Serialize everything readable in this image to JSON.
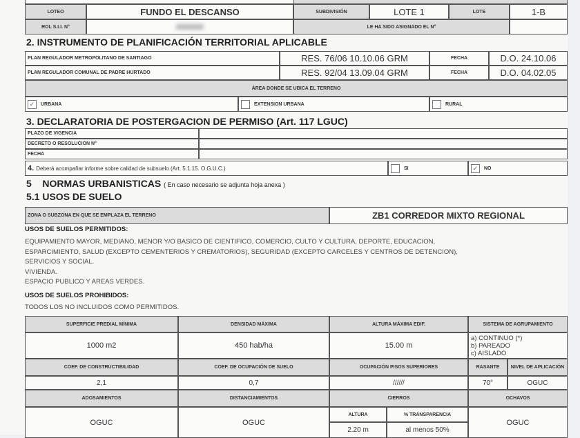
{
  "loteo": {
    "label": "LOTEO",
    "value": "FUNDO EL DESCANSO",
    "subdivision_label": "SUBDIVISIÓN",
    "subdivision": "LOTE 1",
    "lote_label": "LOTE",
    "lote": "1-B",
    "rol_label": "ROL S.I.I. N°",
    "asignado_label": "LE HA SIDO ASIGNADO EL N°"
  },
  "s2": {
    "title": "2.  INSTRUMENTO DE PLANIFICACIÓN TERRITORIAL APLICABLE",
    "plans": [
      {
        "name": "PLAN REGULADOR METROPOLITANO DE SANTIAGO",
        "res": "RES. 76/06 10.10.06 GRM",
        "fecha_label": "FECHA",
        "fecha": "D.O. 24.10.06"
      },
      {
        "name": "PLAN REGULADOR COMUNAL DE PADRE HURTADO",
        "res": "RES. 92/04 13.09.04 GRM",
        "fecha_label": "FECHA",
        "fecha": "D.O. 04.02.05"
      }
    ],
    "area_label": "ÁREA DONDE SE UBICA EL TERRENO",
    "areas": [
      {
        "label": "URBANA",
        "checked": true
      },
      {
        "label": "EXTENSION URBANA",
        "checked": false
      },
      {
        "label": "RURAL",
        "checked": false
      }
    ]
  },
  "s3": {
    "title": "3.   DECLARATORIA DE POSTERGACION DE PERMISO (Art. 117 LGUC)",
    "rows": [
      "PLAZO DE VIGENCIA",
      "DECRETO O RESOLUCION N°",
      "FECHA"
    ]
  },
  "s4": {
    "num": "4.",
    "text": "Deberá acompañar informe sobre calidad de subsuelo (Art. 5.1.15. O.G.U.C.)",
    "si": "SI",
    "no": "NO",
    "si_checked": false,
    "no_checked": true
  },
  "s5": {
    "num": "5",
    "title": "NORMAS URBANISTICAS",
    "note": "( En caso necesario se adjunta hoja anexa )",
    "sub": "5.1  USOS DE SUELO",
    "zona_label": "ZONA O SUBZONA EN QUE SE EMPLAZA EL TERRENO",
    "zona": "ZB1  CORREDOR MIXTO REGIONAL",
    "permitidos_label": "USOS DE SUELOS PERMITIDOS:",
    "permitidos": [
      "EQUIPAMIENTO MAYOR, MEDIANO, MENOR Y/O BASICO DE CIENTIFICO, COMERCIO, CULTO Y CULTURA, DEPORTE, EDUCACION,",
      "ESPARCIMIENTO, SALUD (EXCEPTO  CEMENTERIOS Y CREMATORIOS), SEGURIDAD (EXCEPTO CARCELES Y CENTROS DE DETENCION),",
      "SERVICIOS Y SOCIAL.",
      "VIVIENDA.",
      "ESPACIO PUBLICO Y AREAS VERDES."
    ],
    "prohibidos_label": "USOS DE SUELOS PROHIBIDOS:",
    "prohibidos": "TODOS LOS NO INCLUIDOS COMO PERMITIDOS."
  },
  "table": {
    "h1": [
      "SUPERFICIE PREDIAL MÍNIMA",
      "DENSIDAD MÁXIMA",
      "ALTURA  MÁXIMA EDIF.",
      "SISTEMA DE AGRUPAMIENTO"
    ],
    "v1": [
      "1000 m2",
      "450 hab/ha",
      "15.00  m"
    ],
    "agrup": [
      "a) CONTINUO (*)",
      "b) PAREADO",
      "c) AISLADO"
    ],
    "h2": [
      "COEF. DE CONSTRUCTIBILIDAD",
      "COEF. DE OCUPACIÓN DE SUELO",
      "OCUPACIÓN PISOS SUPERIORES",
      "RASANTE",
      "NIVEL DE APLICACIÓN"
    ],
    "v2": [
      "2,1",
      "0,7",
      "//////",
      "70°",
      "OGUC"
    ],
    "h3": [
      "ADOSAMIENTOS",
      "DISTANCIAMIENTOS",
      "CIERROS",
      "OCHAVOS"
    ],
    "cierros_sub": [
      "ALTURA",
      "% TRANSPARENCIA"
    ],
    "v3": [
      "OGUC",
      "OGUC",
      "2.20  m",
      "al menos 50%",
      "OGUC"
    ]
  }
}
